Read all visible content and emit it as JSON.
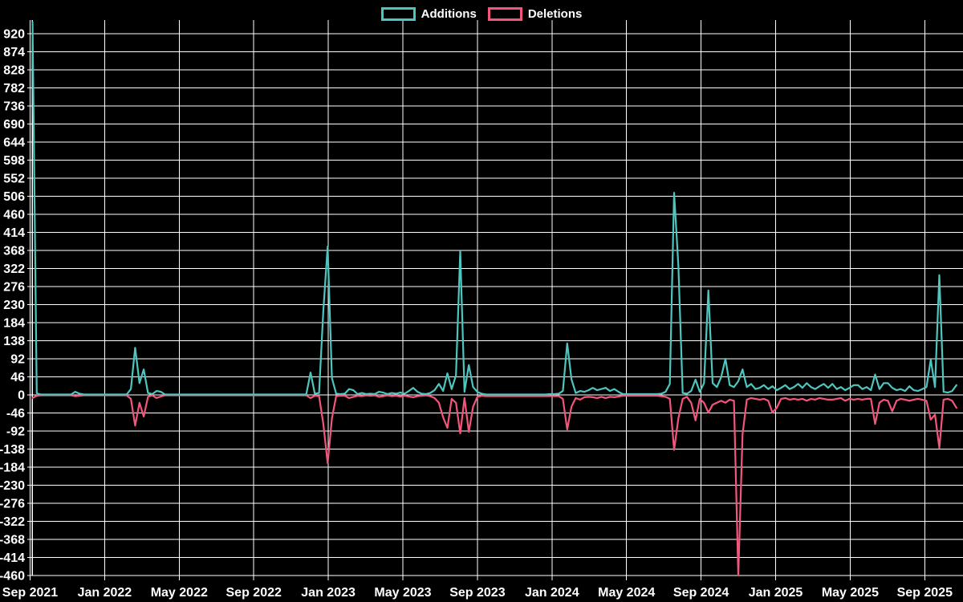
{
  "chart_data": {
    "type": "line",
    "title": "",
    "background_color": "#000000",
    "grid_color": "#ffffff",
    "text_color": "#ffffff",
    "grid": true,
    "legend_position": "top",
    "legend": [
      {
        "name": "Additions",
        "color": "#4dc6bf"
      },
      {
        "name": "Deletions",
        "color": "#f2567c"
      }
    ],
    "xlabel": "",
    "ylabel": "",
    "x_tick_labels": [
      "Sep 2021",
      "Jan 2022",
      "May 2022",
      "Sep 2022",
      "Jan 2023",
      "May 2023",
      "Sep 2023",
      "Jan 2024",
      "May 2024",
      "Sep 2024",
      "Jan 2025",
      "May 2025",
      "Sep 2025"
    ],
    "y_ticks": [
      920,
      874,
      828,
      782,
      736,
      690,
      644,
      598,
      552,
      506,
      460,
      414,
      368,
      322,
      276,
      230,
      184,
      138,
      92,
      46,
      0,
      -46,
      -92,
      -138,
      -184,
      -230,
      -276,
      -322,
      -368,
      -414,
      -460
    ],
    "y_step": 46,
    "ylim": [
      -460,
      950
    ],
    "x_range_weeks": 217,
    "x_start": "week of Sep 2021",
    "x_end": "week of Nov 2025",
    "series": [
      {
        "name": "Additions",
        "color": "#4dc6bf",
        "values": [
          950,
          4,
          1,
          1,
          1,
          1,
          1,
          1,
          1,
          1,
          8,
          3,
          1,
          1,
          1,
          1,
          1,
          1,
          1,
          1,
          1,
          1,
          1,
          15,
          120,
          30,
          65,
          5,
          2,
          10,
          8,
          1,
          1,
          1,
          1,
          1,
          1,
          1,
          1,
          1,
          1,
          1,
          1,
          1,
          1,
          1,
          1,
          1,
          1,
          1,
          1,
          1,
          1,
          1,
          1,
          1,
          1,
          1,
          1,
          1,
          1,
          1,
          1,
          1,
          1,
          57,
          3,
          5,
          215,
          378,
          43,
          3,
          2,
          3,
          15,
          12,
          2,
          5,
          2,
          3,
          2,
          8,
          6,
          2,
          5,
          3,
          6,
          3,
          10,
          18,
          8,
          3,
          2,
          5,
          12,
          28,
          10,
          55,
          15,
          50,
          366,
          8,
          76,
          20,
          8,
          3,
          1,
          1,
          1,
          1,
          1,
          1,
          1,
          1,
          1,
          1,
          1,
          1,
          1,
          1,
          1,
          2,
          2,
          3,
          10,
          131,
          40,
          5,
          10,
          8,
          12,
          18,
          12,
          15,
          18,
          10,
          15,
          8,
          2,
          2,
          2,
          2,
          2,
          2,
          2,
          2,
          2,
          3,
          8,
          28,
          515,
          330,
          5,
          3,
          10,
          39,
          8,
          30,
          266,
          30,
          20,
          45,
          92,
          25,
          20,
          35,
          65,
          20,
          28,
          15,
          18,
          25,
          15,
          22,
          12,
          18,
          25,
          15,
          20,
          28,
          18,
          30,
          20,
          15,
          22,
          28,
          18,
          28,
          15,
          20,
          12,
          18,
          25,
          25,
          15,
          20,
          12,
          52,
          15,
          30,
          30,
          18,
          12,
          15,
          10,
          22,
          12,
          10,
          15,
          20,
          90,
          20,
          305,
          8,
          6,
          10,
          25
        ]
      },
      {
        "name": "Deletions",
        "color": "#f2567c",
        "values": [
          -8,
          -2,
          -1,
          -1,
          -1,
          -1,
          -1,
          -1,
          -1,
          -1,
          -3,
          -2,
          -1,
          -1,
          -1,
          -1,
          -1,
          -1,
          -1,
          -1,
          -1,
          -1,
          -1,
          -10,
          -78,
          -20,
          -55,
          -5,
          -1,
          -8,
          -4,
          -1,
          -1,
          -1,
          -1,
          -1,
          -1,
          -1,
          -1,
          -1,
          -1,
          -1,
          -1,
          -1,
          -1,
          -1,
          -1,
          -1,
          -1,
          -1,
          -1,
          -1,
          -1,
          -1,
          -1,
          -1,
          -1,
          -1,
          -1,
          -1,
          -1,
          -1,
          -1,
          -1,
          -1,
          -8,
          -2,
          -3,
          -74,
          -174,
          -60,
          -3,
          -2,
          -2,
          -8,
          -5,
          -2,
          -3,
          -1,
          -2,
          -1,
          -5,
          -3,
          -1,
          -3,
          -2,
          -4,
          -2,
          -4,
          -6,
          -3,
          -2,
          -1,
          -3,
          -8,
          -20,
          -57,
          -84,
          -10,
          -20,
          -98,
          -8,
          -94,
          -30,
          -5,
          -2,
          -3,
          -3,
          -3,
          -3,
          -3,
          -3,
          -3,
          -3,
          -3,
          -3,
          -3,
          -3,
          -3,
          -3,
          -3,
          -3,
          -3,
          -3,
          -10,
          -88,
          -30,
          -8,
          -12,
          -6,
          -5,
          -6,
          -8,
          -5,
          -8,
          -5,
          -6,
          -4,
          -2,
          -2,
          -2,
          -2,
          -2,
          -2,
          -2,
          -2,
          -2,
          -3,
          -5,
          -10,
          -140,
          -60,
          -10,
          -5,
          -20,
          -65,
          -10,
          -20,
          -45,
          -25,
          -20,
          -15,
          -20,
          -12,
          -15,
          -460,
          -100,
          -12,
          -8,
          -10,
          -12,
          -10,
          -15,
          -45,
          -33,
          -10,
          -8,
          -12,
          -10,
          -12,
          -10,
          -15,
          -10,
          -12,
          -8,
          -10,
          -12,
          -12,
          -10,
          -8,
          -15,
          -10,
          -12,
          -10,
          -12,
          -10,
          -10,
          -74,
          -20,
          -12,
          -15,
          -42,
          -15,
          -10,
          -12,
          -15,
          -12,
          -10,
          -12,
          -15,
          -63,
          -50,
          -135,
          -12,
          -10,
          -15,
          -33
        ]
      }
    ]
  }
}
